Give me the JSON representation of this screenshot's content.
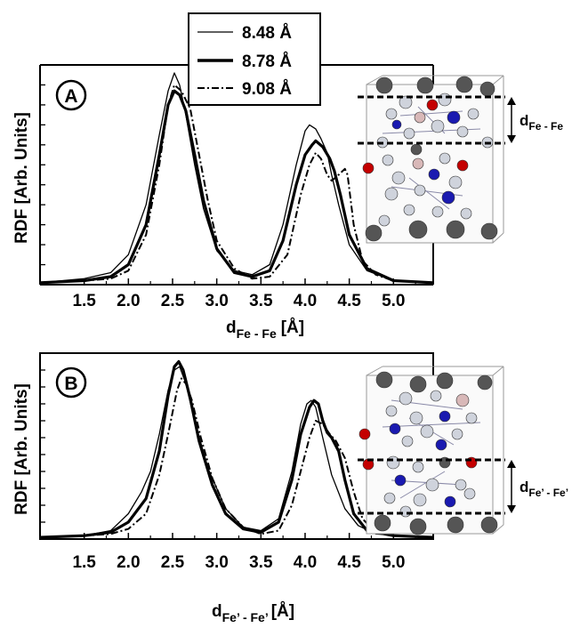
{
  "chart_data": [
    {
      "panel": "A",
      "type": "line",
      "xlabel": "d",
      "xlabel_sub": "Fe - Fe",
      "xlabel_unit": "[Å]",
      "ylabel": "RDF [Arb. Units]",
      "xlim": [
        1.0,
        5.45
      ],
      "ylim": [
        0,
        1.1
      ],
      "x_ticks": [
        "1.5",
        "2.0",
        "2.5",
        "3.0",
        "3.5",
        "4.0",
        "4.5",
        "5.0"
      ],
      "grid": false,
      "legend": "top-center",
      "series": [
        {
          "name": "8.48 Å",
          "style": "thin",
          "points": [
            [
              1.0,
              0.01
            ],
            [
              1.5,
              0.03
            ],
            [
              1.8,
              0.06
            ],
            [
              2.0,
              0.15
            ],
            [
              2.2,
              0.4
            ],
            [
              2.35,
              0.75
            ],
            [
              2.45,
              0.97
            ],
            [
              2.52,
              1.06
            ],
            [
              2.58,
              1.0
            ],
            [
              2.65,
              0.85
            ],
            [
              2.75,
              0.6
            ],
            [
              2.85,
              0.38
            ],
            [
              3.0,
              0.17
            ],
            [
              3.2,
              0.07
            ],
            [
              3.4,
              0.05
            ],
            [
              3.6,
              0.1
            ],
            [
              3.75,
              0.3
            ],
            [
              3.9,
              0.6
            ],
            [
              4.0,
              0.77
            ],
            [
              4.05,
              0.8
            ],
            [
              4.12,
              0.78
            ],
            [
              4.18,
              0.73
            ],
            [
              4.25,
              0.66
            ],
            [
              4.3,
              0.55
            ],
            [
              4.38,
              0.4
            ],
            [
              4.5,
              0.2
            ],
            [
              4.7,
              0.07
            ],
            [
              5.0,
              0.02
            ],
            [
              5.45,
              0.01
            ]
          ]
        },
        {
          "name": "8.78 Å",
          "style": "thick",
          "points": [
            [
              1.0,
              0.01
            ],
            [
              1.5,
              0.02
            ],
            [
              1.8,
              0.04
            ],
            [
              2.0,
              0.1
            ],
            [
              2.2,
              0.3
            ],
            [
              2.35,
              0.65
            ],
            [
              2.45,
              0.9
            ],
            [
              2.52,
              0.97
            ],
            [
              2.58,
              0.95
            ],
            [
              2.65,
              0.87
            ],
            [
              2.75,
              0.65
            ],
            [
              2.85,
              0.42
            ],
            [
              3.0,
              0.18
            ],
            [
              3.2,
              0.06
            ],
            [
              3.4,
              0.04
            ],
            [
              3.6,
              0.07
            ],
            [
              3.75,
              0.22
            ],
            [
              3.9,
              0.5
            ],
            [
              4.0,
              0.65
            ],
            [
              4.08,
              0.7
            ],
            [
              4.12,
              0.72
            ],
            [
              4.2,
              0.69
            ],
            [
              4.28,
              0.63
            ],
            [
              4.33,
              0.57
            ],
            [
              4.4,
              0.45
            ],
            [
              4.5,
              0.25
            ],
            [
              4.7,
              0.08
            ],
            [
              5.0,
              0.02
            ],
            [
              5.45,
              0.01
            ]
          ]
        },
        {
          "name": "9.08 Å",
          "style": "dashdot",
          "points": [
            [
              1.0,
              0.01
            ],
            [
              1.5,
              0.02
            ],
            [
              1.8,
              0.03
            ],
            [
              2.0,
              0.07
            ],
            [
              2.2,
              0.25
            ],
            [
              2.35,
              0.6
            ],
            [
              2.45,
              0.9
            ],
            [
              2.52,
              1.0
            ],
            [
              2.6,
              0.97
            ],
            [
              2.7,
              0.88
            ],
            [
              2.8,
              0.65
            ],
            [
              2.9,
              0.42
            ],
            [
              3.0,
              0.22
            ],
            [
              3.2,
              0.08
            ],
            [
              3.4,
              0.03
            ],
            [
              3.6,
              0.04
            ],
            [
              3.8,
              0.15
            ],
            [
              3.95,
              0.45
            ],
            [
              4.05,
              0.6
            ],
            [
              4.12,
              0.66
            ],
            [
              4.18,
              0.63
            ],
            [
              4.25,
              0.55
            ],
            [
              4.3,
              0.52
            ],
            [
              4.38,
              0.55
            ],
            [
              4.45,
              0.58
            ],
            [
              4.48,
              0.55
            ],
            [
              4.55,
              0.3
            ],
            [
              4.65,
              0.12
            ],
            [
              4.8,
              0.05
            ],
            [
              5.0,
              0.02
            ],
            [
              5.45,
              0.01
            ]
          ]
        }
      ]
    },
    {
      "panel": "B",
      "type": "line",
      "xlabel": "d",
      "xlabel_sub": "Fe’ - Fe’",
      "xlabel_unit": "[Å]",
      "ylabel": "RDF [Arb. Units]",
      "xlim": [
        1.0,
        5.45
      ],
      "ylim": [
        0,
        1.1
      ],
      "x_ticks": [
        "1.5",
        "2.0",
        "2.5",
        "3.0",
        "3.5",
        "4.0",
        "4.5",
        "5.0"
      ],
      "grid": false,
      "series": [
        {
          "name": "8.48 Å",
          "style": "thin",
          "points": [
            [
              1.0,
              0.01
            ],
            [
              1.5,
              0.02
            ],
            [
              1.8,
              0.05
            ],
            [
              2.0,
              0.15
            ],
            [
              2.15,
              0.28
            ],
            [
              2.25,
              0.4
            ],
            [
              2.35,
              0.62
            ],
            [
              2.45,
              0.88
            ],
            [
              2.52,
              1.0
            ],
            [
              2.58,
              1.02
            ],
            [
              2.65,
              0.92
            ],
            [
              2.75,
              0.7
            ],
            [
              2.9,
              0.42
            ],
            [
              3.1,
              0.18
            ],
            [
              3.3,
              0.07
            ],
            [
              3.5,
              0.05
            ],
            [
              3.7,
              0.12
            ],
            [
              3.85,
              0.4
            ],
            [
              3.95,
              0.68
            ],
            [
              4.02,
              0.8
            ],
            [
              4.07,
              0.82
            ],
            [
              4.12,
              0.78
            ],
            [
              4.2,
              0.6
            ],
            [
              4.3,
              0.38
            ],
            [
              4.45,
              0.18
            ],
            [
              4.6,
              0.08
            ],
            [
              4.8,
              0.03
            ],
            [
              5.45,
              0.01
            ]
          ]
        },
        {
          "name": "8.78 Å",
          "style": "thick",
          "points": [
            [
              1.0,
              0.01
            ],
            [
              1.5,
              0.02
            ],
            [
              1.8,
              0.04
            ],
            [
              2.0,
              0.1
            ],
            [
              2.2,
              0.24
            ],
            [
              2.35,
              0.52
            ],
            [
              2.45,
              0.85
            ],
            [
              2.52,
              1.02
            ],
            [
              2.57,
              1.05
            ],
            [
              2.62,
              1.0
            ],
            [
              2.7,
              0.83
            ],
            [
              2.8,
              0.58
            ],
            [
              2.95,
              0.32
            ],
            [
              3.1,
              0.15
            ],
            [
              3.3,
              0.06
            ],
            [
              3.5,
              0.04
            ],
            [
              3.7,
              0.1
            ],
            [
              3.85,
              0.35
            ],
            [
              3.95,
              0.62
            ],
            [
              4.05,
              0.78
            ],
            [
              4.1,
              0.82
            ],
            [
              4.15,
              0.8
            ],
            [
              4.2,
              0.7
            ],
            [
              4.25,
              0.63
            ],
            [
              4.3,
              0.6
            ],
            [
              4.38,
              0.52
            ],
            [
              4.45,
              0.35
            ],
            [
              4.55,
              0.15
            ],
            [
              4.7,
              0.05
            ],
            [
              5.0,
              0.02
            ],
            [
              5.45,
              0.01
            ]
          ]
        },
        {
          "name": "9.08 Å",
          "style": "dashdot",
          "points": [
            [
              1.0,
              0.01
            ],
            [
              1.5,
              0.02
            ],
            [
              1.8,
              0.03
            ],
            [
              2.0,
              0.06
            ],
            [
              2.2,
              0.15
            ],
            [
              2.35,
              0.38
            ],
            [
              2.45,
              0.62
            ],
            [
              2.55,
              0.88
            ],
            [
              2.6,
              0.95
            ],
            [
              2.65,
              0.92
            ],
            [
              2.72,
              0.82
            ],
            [
              2.82,
              0.6
            ],
            [
              2.95,
              0.36
            ],
            [
              3.1,
              0.18
            ],
            [
              3.3,
              0.07
            ],
            [
              3.5,
              0.03
            ],
            [
              3.7,
              0.05
            ],
            [
              3.85,
              0.2
            ],
            [
              3.95,
              0.4
            ],
            [
              4.05,
              0.6
            ],
            [
              4.12,
              0.7
            ],
            [
              4.2,
              0.68
            ],
            [
              4.28,
              0.62
            ],
            [
              4.35,
              0.58
            ],
            [
              4.45,
              0.48
            ],
            [
              4.55,
              0.28
            ],
            [
              4.65,
              0.12
            ],
            [
              4.8,
              0.04
            ],
            [
              5.0,
              0.02
            ],
            [
              5.45,
              0.01
            ]
          ]
        }
      ]
    }
  ],
  "legend": {
    "items": [
      {
        "label": "8.48 Å",
        "style": "thin"
      },
      {
        "label": "8.78 Å",
        "style": "thick"
      },
      {
        "label": "9.08 Å",
        "style": "dashdot"
      }
    ]
  },
  "panels": {
    "a": {
      "letter": "A",
      "dist_label": "d",
      "dist_sub": "Fe - Fe"
    },
    "b": {
      "letter": "B",
      "dist_label": "d",
      "dist_sub": "Fe’ - Fe’"
    }
  },
  "colors": {
    "line": "#000000",
    "atom_dark": "#555555",
    "atom_light": "#cfd3dc",
    "atom_red": "#c40000",
    "atom_blue": "#1a1ab0",
    "atom_pink": "#d8b8b8",
    "cell_edge": "#999999"
  }
}
